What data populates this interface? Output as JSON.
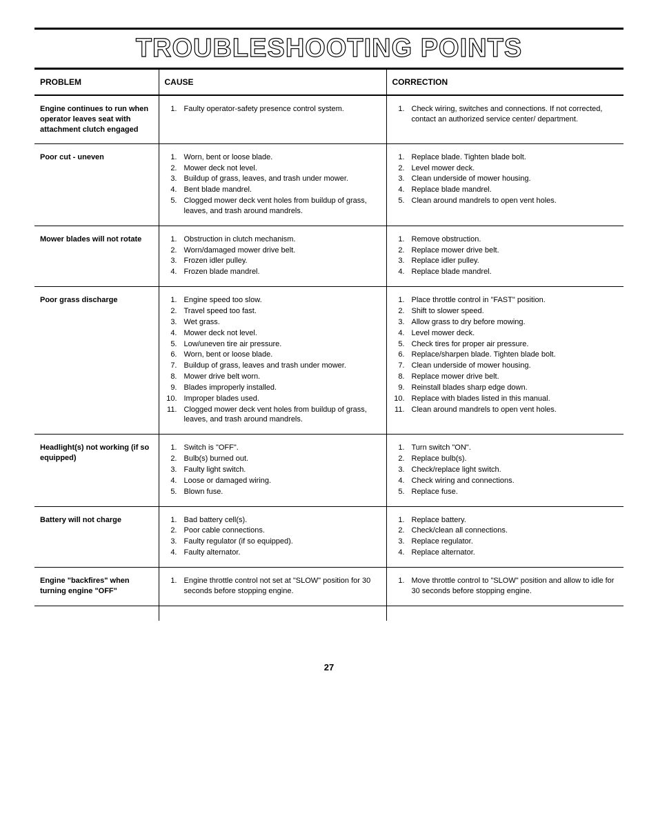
{
  "page_title": "TROUBLESHOOTING POINTS",
  "page_number": "27",
  "headers": {
    "problem": "PROBLEM",
    "cause": "CAUSE",
    "correction": "CORRECTION"
  },
  "rows": [
    {
      "problem": "Engine continues to run when operator leaves seat with attachment clutch engaged",
      "causes": [
        "Faulty operator-safety presence control system."
      ],
      "corrections": [
        "Check wiring, switches  and connections.  If not corrected, contact an authorized service center/ department."
      ]
    },
    {
      "problem": "Poor cut - uneven",
      "causes": [
        "Worn, bent or loose blade.",
        "Mower deck not level.",
        "Buildup of grass, leaves, and trash under mower.",
        "Bent blade mandrel.",
        "Clogged mower deck vent holes from buildup of grass, leaves, and trash around mandrels."
      ],
      "corrections": [
        "Replace blade.  Tighten blade bolt.",
        "Level mower deck.",
        "Clean underside of mower housing.",
        "Replace blade mandrel.",
        "Clean around mandrels to open vent holes."
      ]
    },
    {
      "problem": "Mower blades will not rotate",
      "causes": [
        "Obstruction in clutch mechanism.",
        "Worn/damaged mower drive belt.",
        "Frozen idler pulley.",
        "Frozen blade mandrel."
      ],
      "corrections": [
        "Remove obstruction.",
        "Replace mower drive belt.",
        "Replace idler pulley.",
        "Replace blade mandrel."
      ]
    },
    {
      "problem": "Poor grass discharge",
      "causes": [
        "Engine speed too slow.",
        "Travel speed too fast.",
        "Wet grass.",
        "Mower deck not level.",
        "Low/uneven tire air pressure.",
        "Worn, bent or loose blade.",
        "Buildup of grass, leaves and trash under mower.",
        "Mower drive belt worn.",
        "Blades improperly installed.",
        "Improper blades used.",
        "Clogged mower deck vent holes from buildup of grass, leaves, and trash around mandrels."
      ],
      "corrections": [
        "Place throttle control in \"FAST\" position.",
        "Shift to slower speed.",
        "Allow grass to dry before mowing.",
        "Level mower deck.",
        "Check tires for proper air pressure.",
        "Replace/sharpen blade.  Tighten blade bolt.",
        "Clean underside of mower housing.",
        "Replace mower drive belt.",
        "Reinstall blades sharp edge down.",
        "Replace with blades listed in this manual.",
        "Clean around mandrels to open vent holes."
      ]
    },
    {
      "problem": "Headlight(s) not working (if so equipped)",
      "causes": [
        "Switch is \"OFF\".",
        "Bulb(s) burned out.",
        "Faulty light switch.",
        "Loose or damaged wiring.",
        "Blown fuse."
      ],
      "corrections": [
        "Turn switch \"ON\".",
        "Replace bulb(s).",
        "Check/replace light switch.",
        "Check wiring and connections.",
        "Replace fuse."
      ]
    },
    {
      "problem": "Battery will not charge",
      "causes": [
        "Bad battery cell(s).",
        "Poor cable connections.",
        "Faulty regulator (if so equipped).",
        "Faulty alternator."
      ],
      "corrections": [
        "Replace battery.",
        "Check/clean all connections.",
        "Replace regulator.",
        "Replace alternator."
      ]
    },
    {
      "problem": "Engine \"backfires\" when turning engine \"OFF\"",
      "causes": [
        "Engine throttle control not set at \"SLOW\" position for 30 seconds before stopping engine."
      ],
      "corrections": [
        "Move throttle control to \"SLOW\" position and allow to idle for 30 seconds before stopping engine."
      ]
    }
  ]
}
